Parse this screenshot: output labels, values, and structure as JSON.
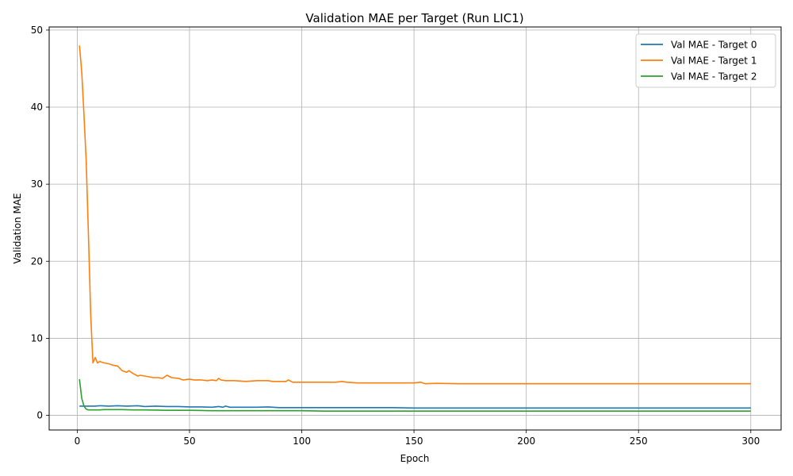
{
  "chart_data": {
    "type": "line",
    "title": "Validation MAE per Target (Run LIC1)",
    "xlabel": "Epoch",
    "ylabel": "Validation MAE",
    "xlim": [
      -12.5,
      313.5
    ],
    "ylim": [
      -1.9,
      50.4
    ],
    "xticks": [
      0,
      50,
      100,
      150,
      200,
      250,
      300
    ],
    "yticks": [
      0,
      10,
      20,
      30,
      40,
      50
    ],
    "grid": true,
    "legend_position": "top-right",
    "series": [
      {
        "name": "Val MAE - Target 0",
        "color": "#1f77b4",
        "points": [
          [
            1,
            1.2
          ],
          [
            3,
            1.2
          ],
          [
            5,
            1.2
          ],
          [
            8,
            1.2
          ],
          [
            10,
            1.25
          ],
          [
            14,
            1.2
          ],
          [
            18,
            1.25
          ],
          [
            22,
            1.2
          ],
          [
            27,
            1.25
          ],
          [
            30,
            1.15
          ],
          [
            35,
            1.2
          ],
          [
            40,
            1.15
          ],
          [
            45,
            1.15
          ],
          [
            50,
            1.1
          ],
          [
            55,
            1.1
          ],
          [
            60,
            1.05
          ],
          [
            63,
            1.15
          ],
          [
            65,
            1.05
          ],
          [
            66,
            1.2
          ],
          [
            68,
            1.05
          ],
          [
            75,
            1.05
          ],
          [
            80,
            1.05
          ],
          [
            85,
            1.1
          ],
          [
            90,
            1.0
          ],
          [
            100,
            1.0
          ],
          [
            110,
            1.0
          ],
          [
            120,
            1.0
          ],
          [
            130,
            1.0
          ],
          [
            140,
            1.0
          ],
          [
            150,
            0.95
          ],
          [
            160,
            0.95
          ],
          [
            170,
            0.95
          ],
          [
            200,
            0.95
          ],
          [
            250,
            0.95
          ],
          [
            300,
            0.95
          ]
        ]
      },
      {
        "name": "Val MAE - Target 1",
        "color": "#ff7f0e",
        "points": [
          [
            1,
            48.0
          ],
          [
            2,
            44.5
          ],
          [
            3,
            39.0
          ],
          [
            4,
            33.0
          ],
          [
            5,
            23.5
          ],
          [
            6,
            13.0
          ],
          [
            7,
            6.8
          ],
          [
            8,
            7.5
          ],
          [
            9,
            6.8
          ],
          [
            10,
            7.0
          ],
          [
            12,
            6.8
          ],
          [
            14,
            6.7
          ],
          [
            16,
            6.5
          ],
          [
            18,
            6.4
          ],
          [
            20,
            5.8
          ],
          [
            22,
            5.6
          ],
          [
            23,
            5.8
          ],
          [
            25,
            5.4
          ],
          [
            27,
            5.1
          ],
          [
            28,
            5.2
          ],
          [
            30,
            5.1
          ],
          [
            32,
            5.0
          ],
          [
            34,
            4.9
          ],
          [
            36,
            4.9
          ],
          [
            38,
            4.8
          ],
          [
            40,
            5.2
          ],
          [
            42,
            4.9
          ],
          [
            45,
            4.8
          ],
          [
            47,
            4.6
          ],
          [
            50,
            4.7
          ],
          [
            52,
            4.6
          ],
          [
            55,
            4.6
          ],
          [
            58,
            4.5
          ],
          [
            60,
            4.6
          ],
          [
            62,
            4.5
          ],
          [
            63,
            4.8
          ],
          [
            64,
            4.6
          ],
          [
            66,
            4.5
          ],
          [
            70,
            4.5
          ],
          [
            75,
            4.4
          ],
          [
            80,
            4.5
          ],
          [
            85,
            4.5
          ],
          [
            87,
            4.4
          ],
          [
            90,
            4.4
          ],
          [
            93,
            4.4
          ],
          [
            94,
            4.6
          ],
          [
            96,
            4.3
          ],
          [
            100,
            4.3
          ],
          [
            105,
            4.3
          ],
          [
            110,
            4.3
          ],
          [
            115,
            4.3
          ],
          [
            118,
            4.4
          ],
          [
            120,
            4.3
          ],
          [
            125,
            4.2
          ],
          [
            130,
            4.2
          ],
          [
            140,
            4.2
          ],
          [
            150,
            4.2
          ],
          [
            153,
            4.3
          ],
          [
            155,
            4.1
          ],
          [
            160,
            4.15
          ],
          [
            170,
            4.1
          ],
          [
            180,
            4.1
          ],
          [
            190,
            4.1
          ],
          [
            200,
            4.1
          ],
          [
            250,
            4.1
          ],
          [
            300,
            4.1
          ]
        ]
      },
      {
        "name": "Val MAE - Target 2",
        "color": "#2ca02c",
        "points": [
          [
            1,
            4.7
          ],
          [
            2,
            2.2
          ],
          [
            3,
            1.2
          ],
          [
            4,
            0.8
          ],
          [
            5,
            0.7
          ],
          [
            8,
            0.7
          ],
          [
            10,
            0.7
          ],
          [
            12,
            0.75
          ],
          [
            15,
            0.75
          ],
          [
            20,
            0.75
          ],
          [
            25,
            0.7
          ],
          [
            30,
            0.7
          ],
          [
            40,
            0.65
          ],
          [
            50,
            0.65
          ],
          [
            60,
            0.6
          ],
          [
            70,
            0.6
          ],
          [
            80,
            0.6
          ],
          [
            90,
            0.6
          ],
          [
            100,
            0.6
          ],
          [
            110,
            0.55
          ],
          [
            120,
            0.55
          ],
          [
            150,
            0.55
          ],
          [
            200,
            0.55
          ],
          [
            250,
            0.55
          ],
          [
            300,
            0.55
          ]
        ]
      }
    ]
  }
}
